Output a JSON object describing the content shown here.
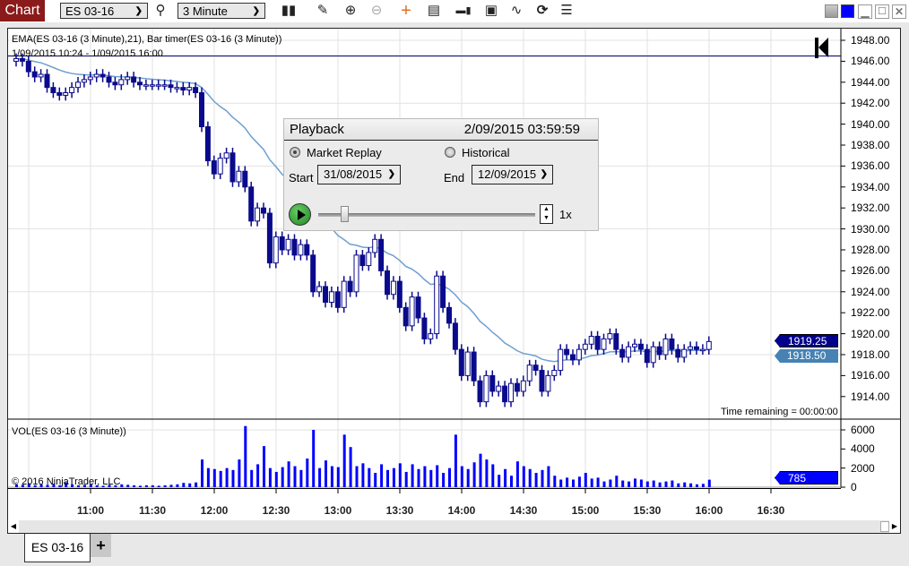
{
  "toolbar": {
    "chart_label": "Chart",
    "instrument": "ES 03-16",
    "interval": "3 Minute",
    "icons": [
      "search-icon",
      "bar-type-icon",
      "pencil-icon",
      "zoom-in-icon",
      "zoom-out-icon",
      "crosshair-icon",
      "data-box-icon",
      "order-flow-icon",
      "chart-trader-icon",
      "strategy-icon",
      "reload-icon",
      "properties-icon"
    ]
  },
  "window_controls": [
    "link-gray",
    "link-blue",
    "minimize",
    "maximize",
    "close"
  ],
  "chart": {
    "indicator_label": "EMA(ES 03-16 (3 Minute),21), Bar timer(ES 03-16 (3 Minute))",
    "date_range": "1/09/2015 10:24 - 1/09/2015 16:00",
    "time_remaining": "Time remaining = 00:00:00",
    "volume_label": "VOL(ES 03-16 (3 Minute))",
    "copyright": "© 2016 NinjaTrader, LLC",
    "last_price": "1919.25",
    "ema_value": "1918.50",
    "last_volume": "785",
    "horizontal_line_price": 1946.5,
    "colors": {
      "candle": "#0a0a8c",
      "ema": "#6f9fd0",
      "volume": "#0000ff",
      "last_price_tag": "#00008b",
      "ema_tag": "#4682b4",
      "volume_tag": "#0000ff"
    }
  },
  "chart_data": {
    "type": "candlestick",
    "bar_interval_minutes": 3,
    "first_bar_time": "10:24",
    "last_bar_time": "16:00",
    "ema_period": 21,
    "price_axis": {
      "ylim": [
        1912.5,
        1949.5
      ],
      "ticks": [
        "1948.00",
        "1946.00",
        "1944.00",
        "1942.00",
        "1940.00",
        "1938.00",
        "1936.00",
        "1934.00",
        "1932.00",
        "1930.00",
        "1928.00",
        "1926.00",
        "1924.00",
        "1922.00",
        "1920.00",
        "1918.00",
        "1916.00",
        "1914.00"
      ]
    },
    "volume_axis": {
      "ylim": [
        0,
        6800
      ],
      "ticks": [
        "6000",
        "4000",
        "2000",
        "0"
      ]
    },
    "time_ticks": [
      "11:00",
      "11:30",
      "12:00",
      "12:30",
      "13:00",
      "13:30",
      "14:00",
      "14:30",
      "15:00",
      "15:30",
      "16:00",
      "16:30"
    ],
    "close": [
      1946.25,
      1946.0,
      1945.0,
      1944.5,
      1944.75,
      1943.5,
      1943.0,
      1942.75,
      1943.0,
      1943.5,
      1944.0,
      1944.25,
      1944.5,
      1944.75,
      1944.5,
      1944.0,
      1943.75,
      1944.25,
      1944.5,
      1944.0,
      1943.75,
      1943.75,
      1943.75,
      1943.75,
      1943.75,
      1943.5,
      1943.5,
      1943.25,
      1943.5,
      1943.0,
      1939.75,
      1936.5,
      1935.25,
      1936.75,
      1937.25,
      1934.5,
      1935.5,
      1934.0,
      1930.75,
      1932.0,
      1931.5,
      1926.75,
      1929.25,
      1928.0,
      1929.0,
      1927.5,
      1928.5,
      1927.5,
      1924.0,
      1924.5,
      1923.0,
      1924.0,
      1922.5,
      1925.0,
      1924.0,
      1927.5,
      1926.5,
      1927.75,
      1929.0,
      1926.0,
      1923.75,
      1925.0,
      1922.5,
      1920.75,
      1923.5,
      1921.5,
      1919.5,
      1920.0,
      1925.5,
      1922.5,
      1921.0,
      1918.5,
      1916.0,
      1918.25,
      1915.5,
      1913.5,
      1916.0,
      1914.5,
      1915.0,
      1913.5,
      1915.25,
      1914.5,
      1915.5,
      1917.0,
      1916.5,
      1914.5,
      1916.0,
      1916.5,
      1918.5,
      1918.0,
      1917.5,
      1918.5,
      1919.0,
      1919.75,
      1918.5,
      1919.5,
      1920.0,
      1918.5,
      1917.75,
      1918.75,
      1919.0,
      1918.5,
      1917.25,
      1918.75,
      1918.0,
      1919.5,
      1918.5,
      1917.75,
      1918.5,
      1918.75,
      1918.5,
      1918.5,
      1919.25
    ],
    "first_open": 1946.0,
    "volume": [
      300,
      250,
      400,
      200,
      300,
      250,
      350,
      200,
      500,
      300,
      200,
      250,
      300,
      200,
      150,
      250,
      200,
      300,
      250,
      200,
      150,
      200,
      200,
      150,
      200,
      250,
      300,
      450,
      400,
      500,
      2900,
      2000,
      1900,
      1700,
      2000,
      1800,
      2900,
      6400,
      1800,
      2400,
      4300,
      2000,
      1600,
      2100,
      2700,
      2200,
      1800,
      3000,
      6000,
      2000,
      2800,
      2200,
      2100,
      5500,
      4200,
      2200,
      2500,
      2000,
      1500,
      2400,
      1800,
      2000,
      2500,
      1600,
      2400,
      1900,
      2200,
      1800,
      2300,
      1500,
      2000,
      5500,
      2200,
      1900,
      2600,
      3500,
      2900,
      2400,
      1300,
      1900,
      1200,
      2700,
      2200,
      1900,
      1500,
      1800,
      2200,
      1200,
      800,
      1000,
      800,
      1100,
      1500,
      900,
      1000,
      600,
      800,
      1200,
      700,
      600,
      900,
      800,
      600,
      700,
      500,
      600,
      700,
      400,
      500,
      400,
      300,
      350,
      785
    ]
  },
  "playback": {
    "title": "Playback",
    "current_time": "2/09/2015 03:59:59",
    "mode_market_replay": "Market Replay",
    "mode_historical": "Historical",
    "selected_mode": "Market Replay",
    "start_label": "Start",
    "start_date": "31/08/2015",
    "end_label": "End",
    "end_date": "12/09/2015",
    "speed": "1x",
    "slider_position_percent": 12
  },
  "tabs": [
    {
      "label": "ES 03-16",
      "active": true
    }
  ],
  "add_tab_label": "+"
}
